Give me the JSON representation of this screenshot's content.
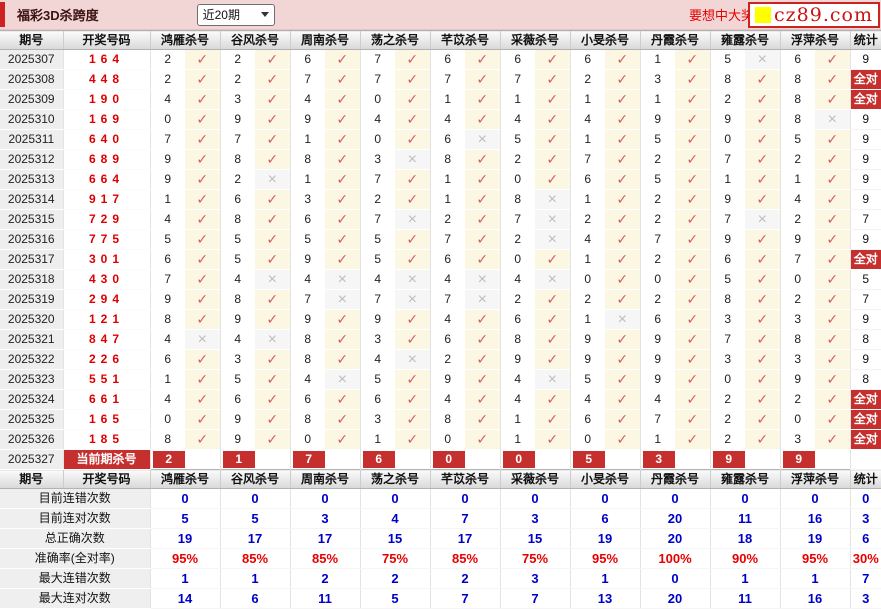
{
  "title_bar": {
    "title": "福彩3D杀跨度",
    "range_selected": "近20期",
    "promo": "要想中大奖",
    "logo": "cz89.com"
  },
  "icons": {
    "hit": "✓",
    "miss": "×"
  },
  "colors": {
    "accent_red": "#c5302f",
    "titlebar_pink": "#f2d6d6",
    "draw_number_red": "#dd0000",
    "hit_check": "#d95c5c",
    "hit_cell_bg": "#fbf7e2",
    "miss_gray": "#bdbdbd",
    "footer_blue": "#0000cc",
    "footer_red": "#e80000",
    "logo_yellow": "#ffff00"
  },
  "table": {
    "columns": [
      "期号",
      "开奖号码",
      "鸿雁杀号",
      "谷风杀号",
      "周南杀号",
      "荡之杀号",
      "芊苡杀号",
      "采薇杀号",
      "小旻杀号",
      "丹霞杀号",
      "雍露杀号",
      "浮萍杀号",
      "统计"
    ],
    "rows": [
      {
        "period": "2025307",
        "numbers": "164",
        "k": [
          2,
          2,
          6,
          7,
          6,
          6,
          6,
          1,
          5,
          6
        ],
        "h": [
          1,
          1,
          1,
          1,
          1,
          1,
          1,
          1,
          0,
          1
        ],
        "stat": "9",
        "all": false
      },
      {
        "period": "2025308",
        "numbers": "448",
        "k": [
          2,
          2,
          7,
          7,
          7,
          7,
          2,
          3,
          8,
          8
        ],
        "h": [
          1,
          1,
          1,
          1,
          1,
          1,
          1,
          1,
          1,
          1
        ],
        "stat": "全对",
        "all": true
      },
      {
        "period": "2025309",
        "numbers": "190",
        "k": [
          4,
          3,
          4,
          0,
          1,
          1,
          1,
          1,
          2,
          8
        ],
        "h": [
          1,
          1,
          1,
          1,
          1,
          1,
          1,
          1,
          1,
          1
        ],
        "stat": "全对",
        "all": true
      },
      {
        "period": "2025310",
        "numbers": "169",
        "k": [
          0,
          9,
          9,
          4,
          4,
          4,
          4,
          9,
          9,
          8
        ],
        "h": [
          1,
          1,
          1,
          1,
          1,
          1,
          1,
          1,
          1,
          0
        ],
        "stat": "9",
        "all": false
      },
      {
        "period": "2025311",
        "numbers": "640",
        "k": [
          7,
          7,
          1,
          0,
          6,
          5,
          1,
          5,
          0,
          5
        ],
        "h": [
          1,
          1,
          1,
          1,
          0,
          1,
          1,
          1,
          1,
          1
        ],
        "stat": "9",
        "all": false
      },
      {
        "period": "2025312",
        "numbers": "689",
        "k": [
          9,
          8,
          8,
          3,
          8,
          2,
          7,
          2,
          7,
          2
        ],
        "h": [
          1,
          1,
          1,
          0,
          1,
          1,
          1,
          1,
          1,
          1
        ],
        "stat": "9",
        "all": false
      },
      {
        "period": "2025313",
        "numbers": "664",
        "k": [
          9,
          2,
          1,
          7,
          1,
          0,
          6,
          5,
          1,
          1
        ],
        "h": [
          1,
          0,
          1,
          1,
          1,
          1,
          1,
          1,
          1,
          1
        ],
        "stat": "9",
        "all": false
      },
      {
        "period": "2025314",
        "numbers": "917",
        "k": [
          1,
          6,
          3,
          2,
          1,
          8,
          1,
          2,
          9,
          4
        ],
        "h": [
          1,
          1,
          1,
          1,
          1,
          0,
          1,
          1,
          1,
          1
        ],
        "stat": "9",
        "all": false
      },
      {
        "period": "2025315",
        "numbers": "729",
        "k": [
          4,
          8,
          6,
          7,
          2,
          7,
          2,
          2,
          7,
          2
        ],
        "h": [
          1,
          1,
          1,
          0,
          1,
          0,
          1,
          1,
          0,
          1
        ],
        "stat": "7",
        "all": false
      },
      {
        "period": "2025316",
        "numbers": "775",
        "k": [
          5,
          5,
          5,
          5,
          7,
          2,
          4,
          7,
          9,
          9
        ],
        "h": [
          1,
          1,
          1,
          1,
          1,
          0,
          1,
          1,
          1,
          1
        ],
        "stat": "9",
        "all": false
      },
      {
        "period": "2025317",
        "numbers": "301",
        "k": [
          6,
          5,
          9,
          5,
          6,
          0,
          1,
          2,
          6,
          7
        ],
        "h": [
          1,
          1,
          1,
          1,
          1,
          1,
          1,
          1,
          1,
          1
        ],
        "stat": "全对",
        "all": true
      },
      {
        "period": "2025318",
        "numbers": "430",
        "k": [
          7,
          4,
          4,
          4,
          4,
          4,
          0,
          0,
          5,
          0
        ],
        "h": [
          1,
          0,
          0,
          0,
          0,
          0,
          1,
          1,
          1,
          1
        ],
        "stat": "5",
        "all": false
      },
      {
        "period": "2025319",
        "numbers": "294",
        "k": [
          9,
          8,
          7,
          7,
          7,
          2,
          2,
          2,
          8,
          2
        ],
        "h": [
          1,
          1,
          0,
          0,
          0,
          1,
          1,
          1,
          1,
          1
        ],
        "stat": "7",
        "all": false
      },
      {
        "period": "2025320",
        "numbers": "121",
        "k": [
          8,
          9,
          9,
          9,
          4,
          6,
          1,
          6,
          3,
          3
        ],
        "h": [
          1,
          1,
          1,
          1,
          1,
          1,
          0,
          1,
          1,
          1
        ],
        "stat": "9",
        "all": false
      },
      {
        "period": "2025321",
        "numbers": "847",
        "k": [
          4,
          4,
          8,
          3,
          6,
          8,
          9,
          9,
          7,
          8
        ],
        "h": [
          0,
          0,
          1,
          1,
          1,
          1,
          1,
          1,
          1,
          1
        ],
        "stat": "8",
        "all": false
      },
      {
        "period": "2025322",
        "numbers": "226",
        "k": [
          6,
          3,
          8,
          4,
          2,
          9,
          9,
          9,
          3,
          3
        ],
        "h": [
          1,
          1,
          1,
          0,
          1,
          1,
          1,
          1,
          1,
          1
        ],
        "stat": "9",
        "all": false
      },
      {
        "period": "2025323",
        "numbers": "551",
        "k": [
          1,
          5,
          4,
          5,
          9,
          4,
          5,
          9,
          0,
          9
        ],
        "h": [
          1,
          1,
          0,
          1,
          1,
          0,
          1,
          1,
          1,
          1
        ],
        "stat": "8",
        "all": false
      },
      {
        "period": "2025324",
        "numbers": "661",
        "k": [
          4,
          6,
          6,
          6,
          4,
          4,
          4,
          4,
          2,
          2
        ],
        "h": [
          1,
          1,
          1,
          1,
          1,
          1,
          1,
          1,
          1,
          1
        ],
        "stat": "全对",
        "all": true
      },
      {
        "period": "2025325",
        "numbers": "165",
        "k": [
          0,
          9,
          8,
          3,
          8,
          1,
          6,
          7,
          2,
          0
        ],
        "h": [
          1,
          1,
          1,
          1,
          1,
          1,
          1,
          1,
          1,
          1
        ],
        "stat": "全对",
        "all": true
      },
      {
        "period": "2025326",
        "numbers": "185",
        "k": [
          8,
          9,
          0,
          1,
          0,
          1,
          0,
          1,
          2,
          3
        ],
        "h": [
          1,
          1,
          1,
          1,
          1,
          1,
          1,
          1,
          1,
          1
        ],
        "stat": "全对",
        "all": true
      }
    ],
    "current": {
      "period": "2025327",
      "label": "当前期杀号",
      "kills": [
        "2",
        "1",
        "7",
        "6",
        "0",
        "0",
        "5",
        "3",
        "9",
        "9"
      ],
      "stat": ""
    }
  },
  "footer": {
    "rows": [
      {
        "label": "目前连错次数",
        "values": [
          "0",
          "0",
          "0",
          "0",
          "0",
          "0",
          "0",
          "0",
          "0",
          "0"
        ],
        "stat": "0",
        "style": "blue"
      },
      {
        "label": "目前连对次数",
        "values": [
          "5",
          "5",
          "3",
          "4",
          "7",
          "3",
          "6",
          "20",
          "11",
          "16"
        ],
        "stat": "3",
        "style": "blue"
      },
      {
        "label": "总正确次数",
        "values": [
          "19",
          "17",
          "17",
          "15",
          "17",
          "15",
          "19",
          "20",
          "18",
          "19"
        ],
        "stat": "6",
        "style": "blue"
      },
      {
        "label": "准确率(全对率)",
        "values": [
          "95%",
          "85%",
          "85%",
          "75%",
          "85%",
          "75%",
          "95%",
          "100%",
          "90%",
          "95%"
        ],
        "stat": "30%",
        "style": "red"
      },
      {
        "label": "最大连错次数",
        "values": [
          "1",
          "1",
          "2",
          "2",
          "2",
          "3",
          "1",
          "0",
          "1",
          "1"
        ],
        "stat": "7",
        "style": "blue"
      },
      {
        "label": "最大连对次数",
        "values": [
          "14",
          "6",
          "11",
          "5",
          "7",
          "7",
          "13",
          "20",
          "11",
          "16"
        ],
        "stat": "3",
        "style": "blue"
      }
    ]
  }
}
